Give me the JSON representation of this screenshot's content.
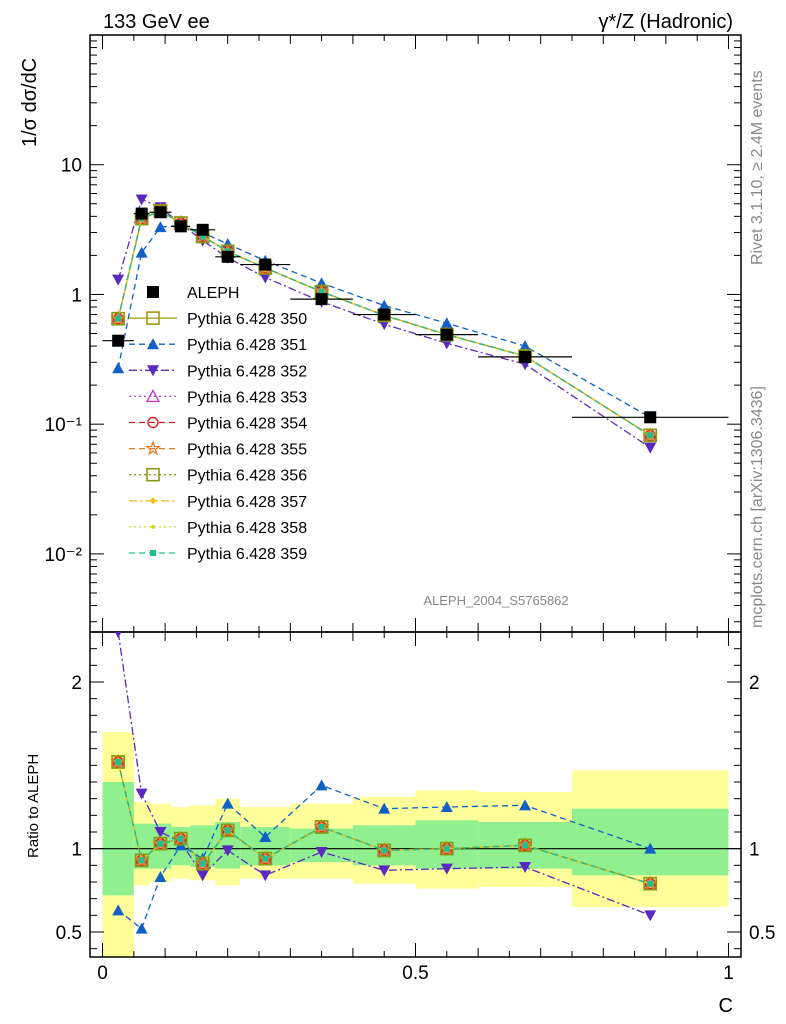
{
  "header": {
    "left": "133 GeV ee",
    "right": "γ*/Z (Hadronic)"
  },
  "side_labels": {
    "rivet": "Rivet 3.1.10, ≥ 2.4M events",
    "source": "mcplots.cern.ch [arXiv:1306.3436]"
  },
  "analysis_id": "ALEPH_2004_S5765862",
  "colors": {
    "data": "#000000",
    "350": "#a39a0c",
    "351": "#1060c8",
    "352": "#5a2ac0",
    "353": "#c040c8",
    "354": "#e02020",
    "355": "#f07820",
    "356": "#8a9a10",
    "357": "#f0c020",
    "358": "#c8d820",
    "359": "#20c088",
    "band_inner": "#90f090",
    "band_outer": "#ffff99"
  },
  "chart_data": [
    {
      "type": "scatter",
      "panel": "main",
      "ylabel": "1/σ  dσ/dC",
      "yscale": "log",
      "ylim": [
        0.0025,
        100
      ],
      "xlim": [
        -0.02,
        1.02
      ],
      "ytick_labels": [
        "10⁻²",
        "10⁻¹",
        "1",
        "10"
      ],
      "ytick_values": [
        0.01,
        0.1,
        1,
        10
      ],
      "legend_position": "left-middle",
      "x": [
        0.025,
        0.0625,
        0.0925,
        0.125,
        0.16,
        0.2,
        0.26,
        0.35,
        0.45,
        0.55,
        0.675,
        0.875
      ],
      "xerr": [
        0.025,
        0.0125,
        0.0175,
        0.015,
        0.02,
        0.02,
        0.04,
        0.05,
        0.05,
        0.05,
        0.075,
        0.125
      ],
      "series": [
        {
          "name": "ALEPH",
          "key": "data",
          "marker": "square-filled",
          "line": "none",
          "values": [
            0.44,
            4.2,
            4.3,
            3.35,
            3.15,
            1.95,
            1.7,
            0.92,
            0.7,
            0.49,
            0.33,
            0.113
          ]
        },
        {
          "name": "Pythia 6.428 350",
          "key": "350",
          "marker": "square-open",
          "line": "solid",
          "values": [
            0.65,
            3.85,
            4.4,
            3.55,
            2.8,
            2.15,
            1.6,
            1.05,
            0.69,
            0.49,
            0.335,
            0.082
          ]
        },
        {
          "name": "Pythia 6.428 351",
          "key": "351",
          "marker": "triangle-up-filled",
          "line": "dashed",
          "values": [
            0.27,
            2.1,
            3.3,
            3.4,
            3.0,
            2.45,
            1.82,
            1.22,
            0.82,
            0.6,
            0.4,
            0.113
          ]
        },
        {
          "name": "Pythia 6.428 352",
          "key": "352",
          "marker": "triangle-down-filled",
          "line": "dashdot",
          "values": [
            1.3,
            5.4,
            4.7,
            3.5,
            2.6,
            1.92,
            1.35,
            0.88,
            0.59,
            0.42,
            0.29,
            0.066
          ]
        },
        {
          "name": "Pythia 6.428 353",
          "key": "353",
          "marker": "triangle-up-open",
          "line": "dotted",
          "values": [
            0.65,
            3.85,
            4.4,
            3.55,
            2.8,
            2.15,
            1.6,
            1.05,
            0.69,
            0.49,
            0.335,
            0.082
          ]
        },
        {
          "name": "Pythia 6.428 354",
          "key": "354",
          "marker": "circle-open",
          "line": "dashed",
          "values": [
            0.65,
            3.85,
            4.4,
            3.55,
            2.8,
            2.15,
            1.6,
            1.05,
            0.69,
            0.49,
            0.335,
            0.082
          ]
        },
        {
          "name": "Pythia 6.428 355",
          "key": "355",
          "marker": "star-open",
          "line": "dashed",
          "values": [
            0.65,
            3.85,
            4.4,
            3.55,
            2.8,
            2.15,
            1.6,
            1.05,
            0.69,
            0.49,
            0.335,
            0.082
          ]
        },
        {
          "name": "Pythia 6.428 356",
          "key": "356",
          "marker": "square-open",
          "line": "dotted",
          "values": [
            0.65,
            3.85,
            4.4,
            3.55,
            2.8,
            2.15,
            1.6,
            1.05,
            0.69,
            0.49,
            0.335,
            0.082
          ]
        },
        {
          "name": "Pythia 6.428 357",
          "key": "357",
          "marker": "diamond-small",
          "line": "dashdot",
          "values": [
            0.65,
            3.85,
            4.4,
            3.55,
            2.8,
            2.15,
            1.6,
            1.05,
            0.69,
            0.49,
            0.335,
            0.082
          ]
        },
        {
          "name": "Pythia 6.428 358",
          "key": "358",
          "marker": "dot-small",
          "line": "dotted",
          "values": [
            0.65,
            3.85,
            4.4,
            3.55,
            2.8,
            2.15,
            1.6,
            1.05,
            0.69,
            0.49,
            0.335,
            0.082
          ]
        },
        {
          "name": "Pythia 6.428 359",
          "key": "359",
          "marker": "square-small-filled",
          "line": "dashed",
          "values": [
            0.65,
            3.85,
            4.4,
            3.55,
            2.8,
            2.15,
            1.6,
            1.05,
            0.69,
            0.49,
            0.335,
            0.082
          ]
        }
      ]
    },
    {
      "type": "scatter",
      "panel": "ratio",
      "ylabel": "Ratio to ALEPH",
      "xlabel": "C",
      "ylim": [
        0.35,
        2.3
      ],
      "xlim": [
        -0.02,
        1.02
      ],
      "ytick_labels": [
        "0.5",
        "1",
        "2"
      ],
      "ytick_values": [
        0.5,
        1,
        2
      ],
      "xtick_labels": [
        "0",
        "0.5",
        "1"
      ],
      "xtick_values": [
        0,
        0.5,
        1
      ],
      "bins": [
        {
          "lo": 0.0,
          "hi": 0.05,
          "inner": [
            0.72,
            1.4
          ],
          "outer": [
            0.35,
            1.7
          ]
        },
        {
          "lo": 0.05,
          "hi": 0.075,
          "inner": [
            0.88,
            1.15
          ],
          "outer": [
            0.78,
            1.28
          ]
        },
        {
          "lo": 0.075,
          "hi": 0.11,
          "inner": [
            0.88,
            1.15
          ],
          "outer": [
            0.8,
            1.27
          ]
        },
        {
          "lo": 0.11,
          "hi": 0.14,
          "inner": [
            0.9,
            1.13
          ],
          "outer": [
            0.82,
            1.25
          ]
        },
        {
          "lo": 0.14,
          "hi": 0.18,
          "inner": [
            0.89,
            1.14
          ],
          "outer": [
            0.81,
            1.26
          ]
        },
        {
          "lo": 0.18,
          "hi": 0.22,
          "inner": [
            0.88,
            1.16
          ],
          "outer": [
            0.78,
            1.3
          ]
        },
        {
          "lo": 0.22,
          "hi": 0.3,
          "inner": [
            0.9,
            1.13
          ],
          "outer": [
            0.82,
            1.25
          ]
        },
        {
          "lo": 0.3,
          "hi": 0.4,
          "inner": [
            0.92,
            1.12
          ],
          "outer": [
            0.82,
            1.27
          ]
        },
        {
          "lo": 0.4,
          "hi": 0.5,
          "inner": [
            0.9,
            1.14
          ],
          "outer": [
            0.79,
            1.31
          ]
        },
        {
          "lo": 0.5,
          "hi": 0.6,
          "inner": [
            0.88,
            1.17
          ],
          "outer": [
            0.76,
            1.35
          ]
        },
        {
          "lo": 0.6,
          "hi": 0.75,
          "inner": [
            0.88,
            1.16
          ],
          "outer": [
            0.77,
            1.34
          ]
        },
        {
          "lo": 0.75,
          "hi": 1.0,
          "inner": [
            0.84,
            1.24
          ],
          "outer": [
            0.65,
            1.47
          ]
        }
      ],
      "x": [
        0.025,
        0.0625,
        0.0925,
        0.125,
        0.16,
        0.2,
        0.26,
        0.35,
        0.45,
        0.55,
        0.675,
        0.875
      ],
      "series": [
        {
          "key": "350",
          "values": [
            1.52,
            0.93,
            1.03,
            1.06,
            0.91,
            1.11,
            0.94,
            1.13,
            0.99,
            1.0,
            1.02,
            0.79
          ]
        },
        {
          "key": "351",
          "values": [
            0.63,
            0.52,
            0.83,
            1.02,
            0.94,
            1.27,
            1.07,
            1.38,
            1.24,
            1.25,
            1.26,
            1.0
          ]
        },
        {
          "key": "352",
          "values": [
            2.3,
            1.33,
            1.1,
            1.04,
            0.84,
            0.99,
            0.84,
            0.98,
            0.87,
            0.88,
            0.89,
            0.6
          ]
        },
        {
          "key": "353",
          "values": [
            1.52,
            0.93,
            1.03,
            1.06,
            0.91,
            1.11,
            0.94,
            1.13,
            0.99,
            1.0,
            1.02,
            0.79
          ]
        },
        {
          "key": "354",
          "values": [
            1.52,
            0.93,
            1.03,
            1.06,
            0.91,
            1.11,
            0.94,
            1.13,
            0.99,
            1.0,
            1.02,
            0.79
          ]
        },
        {
          "key": "355",
          "values": [
            1.52,
            0.93,
            1.03,
            1.06,
            0.91,
            1.11,
            0.94,
            1.13,
            0.99,
            1.0,
            1.02,
            0.79
          ]
        },
        {
          "key": "356",
          "values": [
            1.52,
            0.93,
            1.03,
            1.06,
            0.91,
            1.11,
            0.94,
            1.13,
            0.99,
            1.0,
            1.02,
            0.79
          ]
        },
        {
          "key": "357",
          "values": [
            1.52,
            0.93,
            1.03,
            1.06,
            0.91,
            1.11,
            0.94,
            1.13,
            0.99,
            1.0,
            1.02,
            0.79
          ]
        },
        {
          "key": "358",
          "values": [
            1.52,
            0.93,
            1.03,
            1.06,
            0.91,
            1.11,
            0.94,
            1.13,
            0.99,
            1.0,
            1.02,
            0.79
          ]
        },
        {
          "key": "359",
          "values": [
            1.52,
            0.93,
            1.03,
            1.06,
            0.91,
            1.11,
            0.94,
            1.13,
            0.99,
            1.0,
            1.02,
            0.79
          ]
        }
      ]
    }
  ]
}
